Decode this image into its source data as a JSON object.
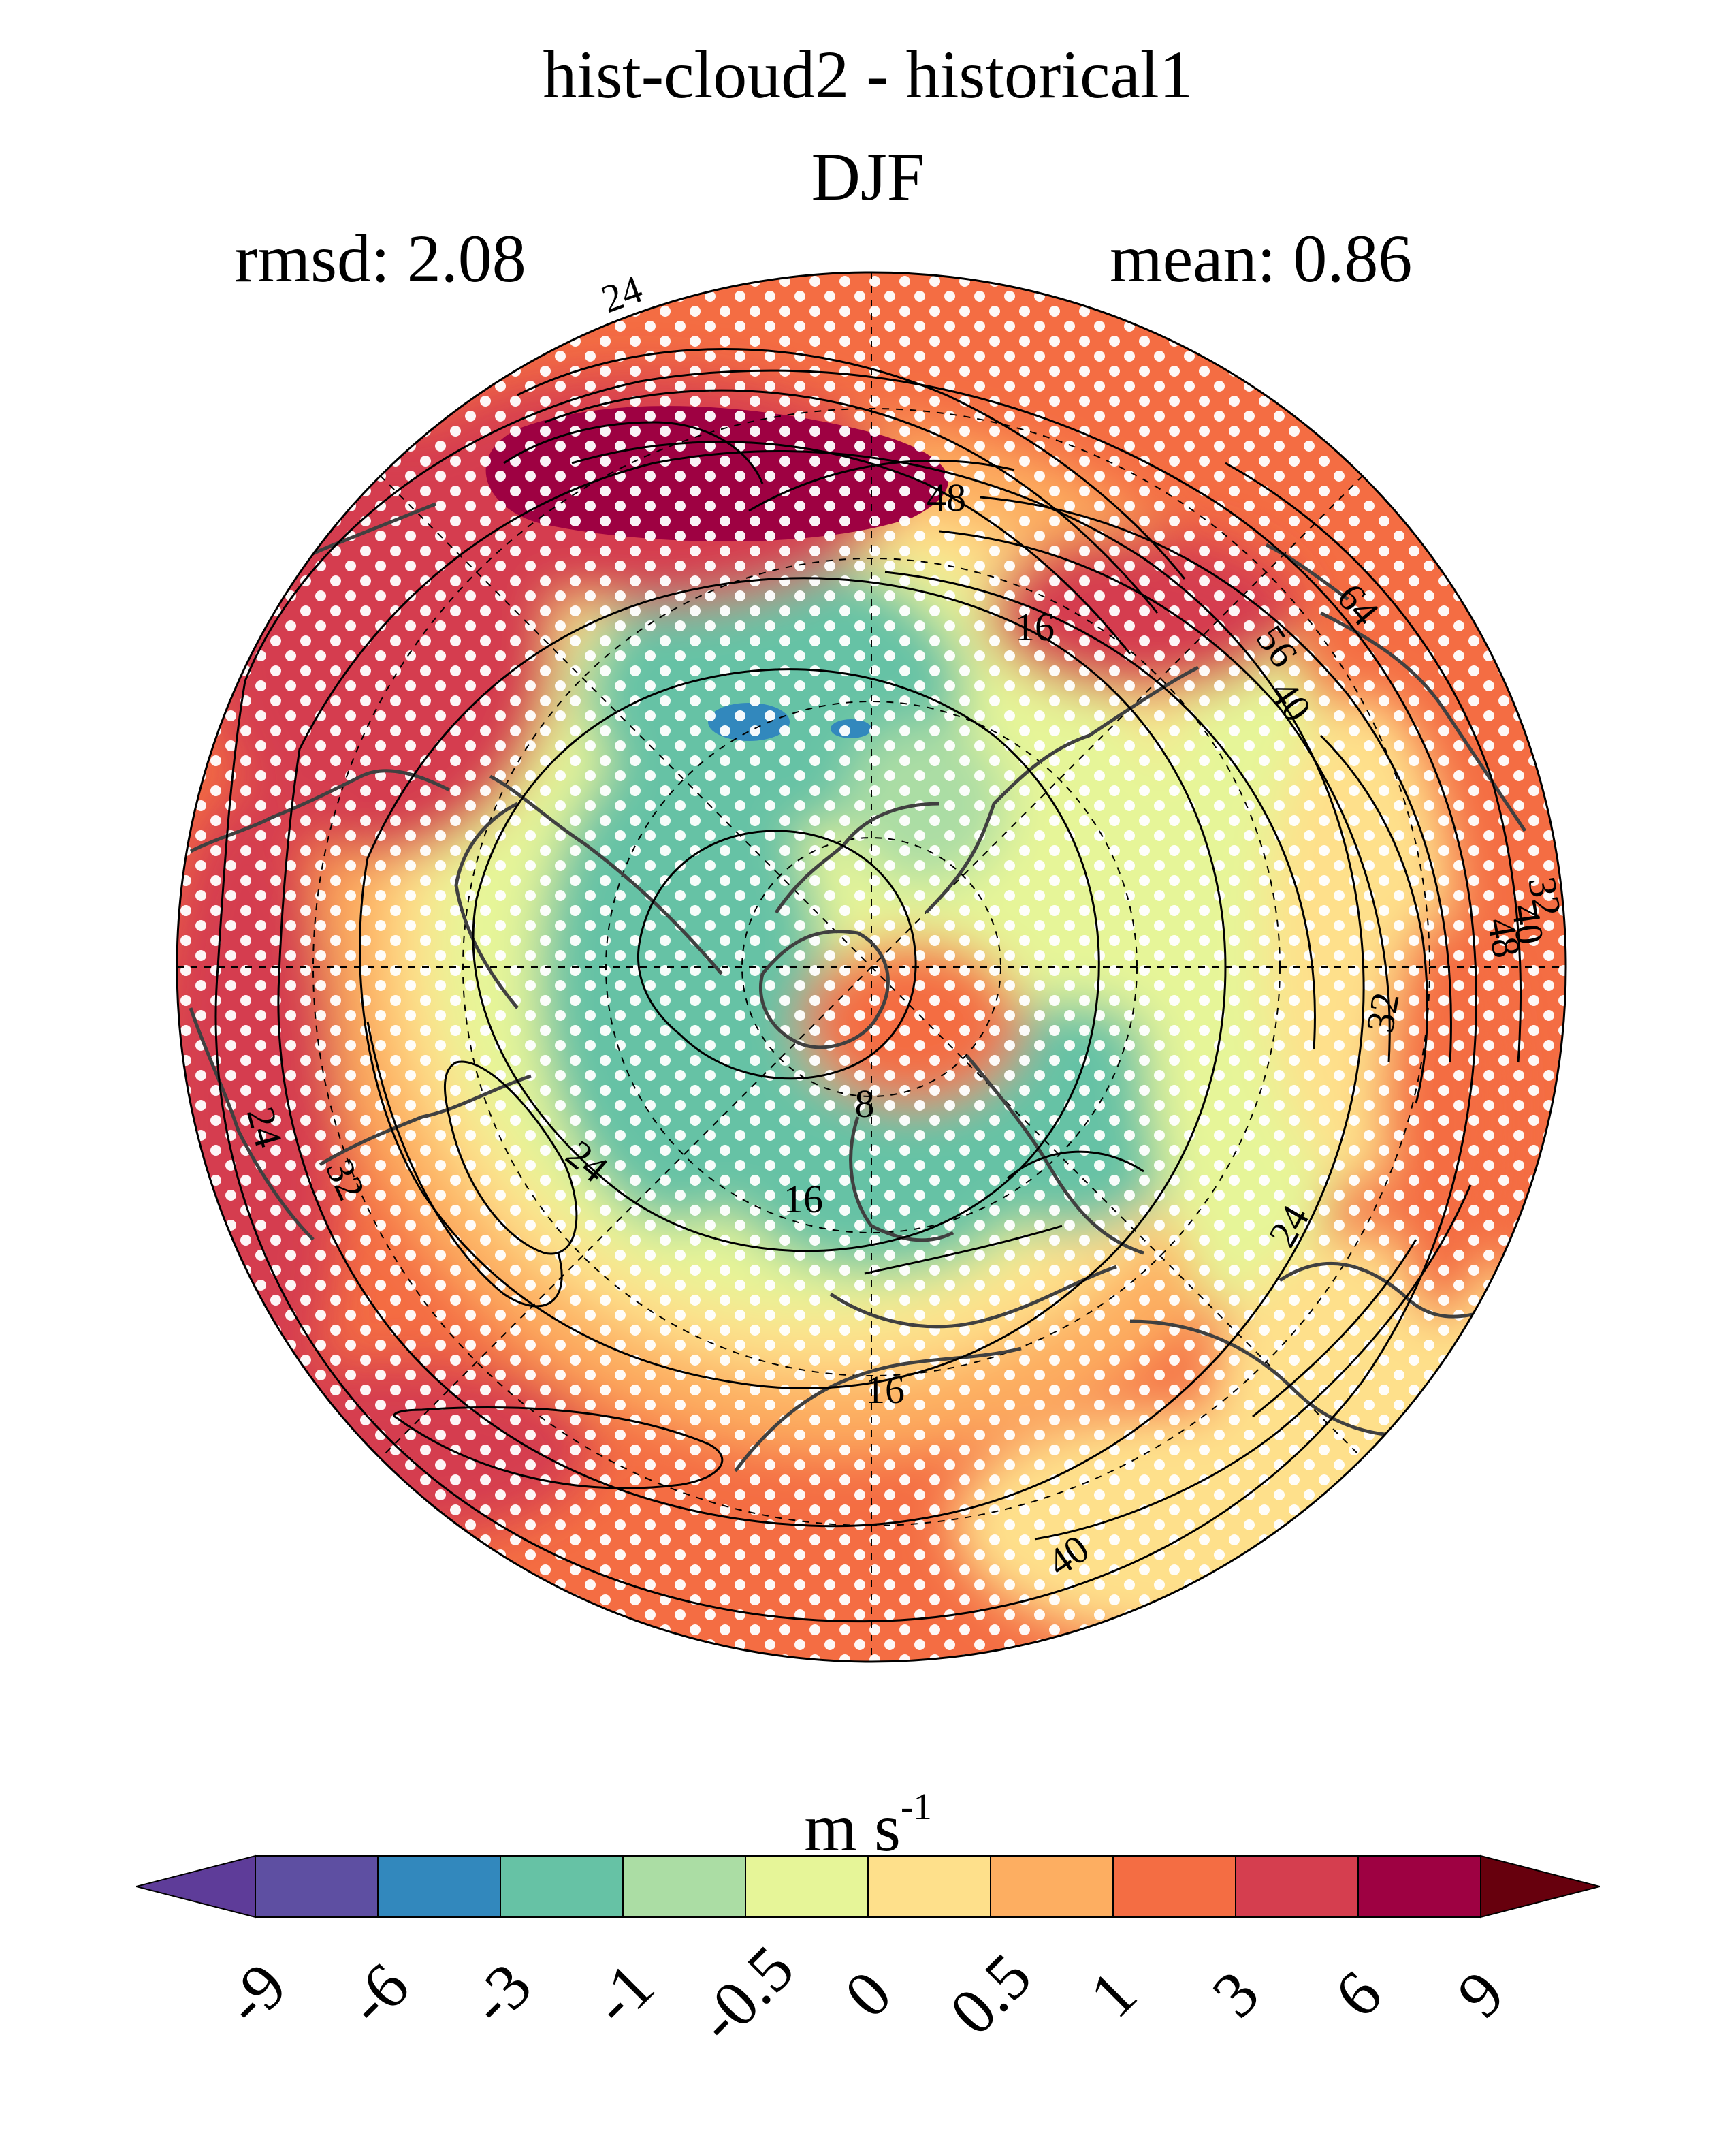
{
  "title": "hist-cloud2 - historical1",
  "season": "DJF",
  "stats": {
    "rmsd_label": "rmsd: 2.08",
    "mean_label": "mean: 0.86"
  },
  "colorbar": {
    "unit_main": "m s",
    "unit_sup": "-1",
    "ticks": [
      "-9",
      "-6",
      "-3",
      "-1",
      "-0.5",
      "0",
      "0.5",
      "1",
      "3",
      "6",
      "9"
    ],
    "colors": [
      "#5e3c99",
      "#5e4fa2",
      "#3288bd",
      "#66c2a5",
      "#abdda4",
      "#e6f598",
      "#fee08b",
      "#fdae61",
      "#f46d43",
      "#d53e4f",
      "#9e0142",
      "#67000d"
    ]
  },
  "map": {
    "projection": "north polar stereographic",
    "stippling": "white dots",
    "contour_labels": [
      "24",
      "48",
      "16",
      "56",
      "64",
      "40",
      "32",
      "48",
      "40",
      "32",
      "24",
      "32",
      "24",
      "8",
      "16",
      "16",
      "40",
      "24"
    ]
  }
}
